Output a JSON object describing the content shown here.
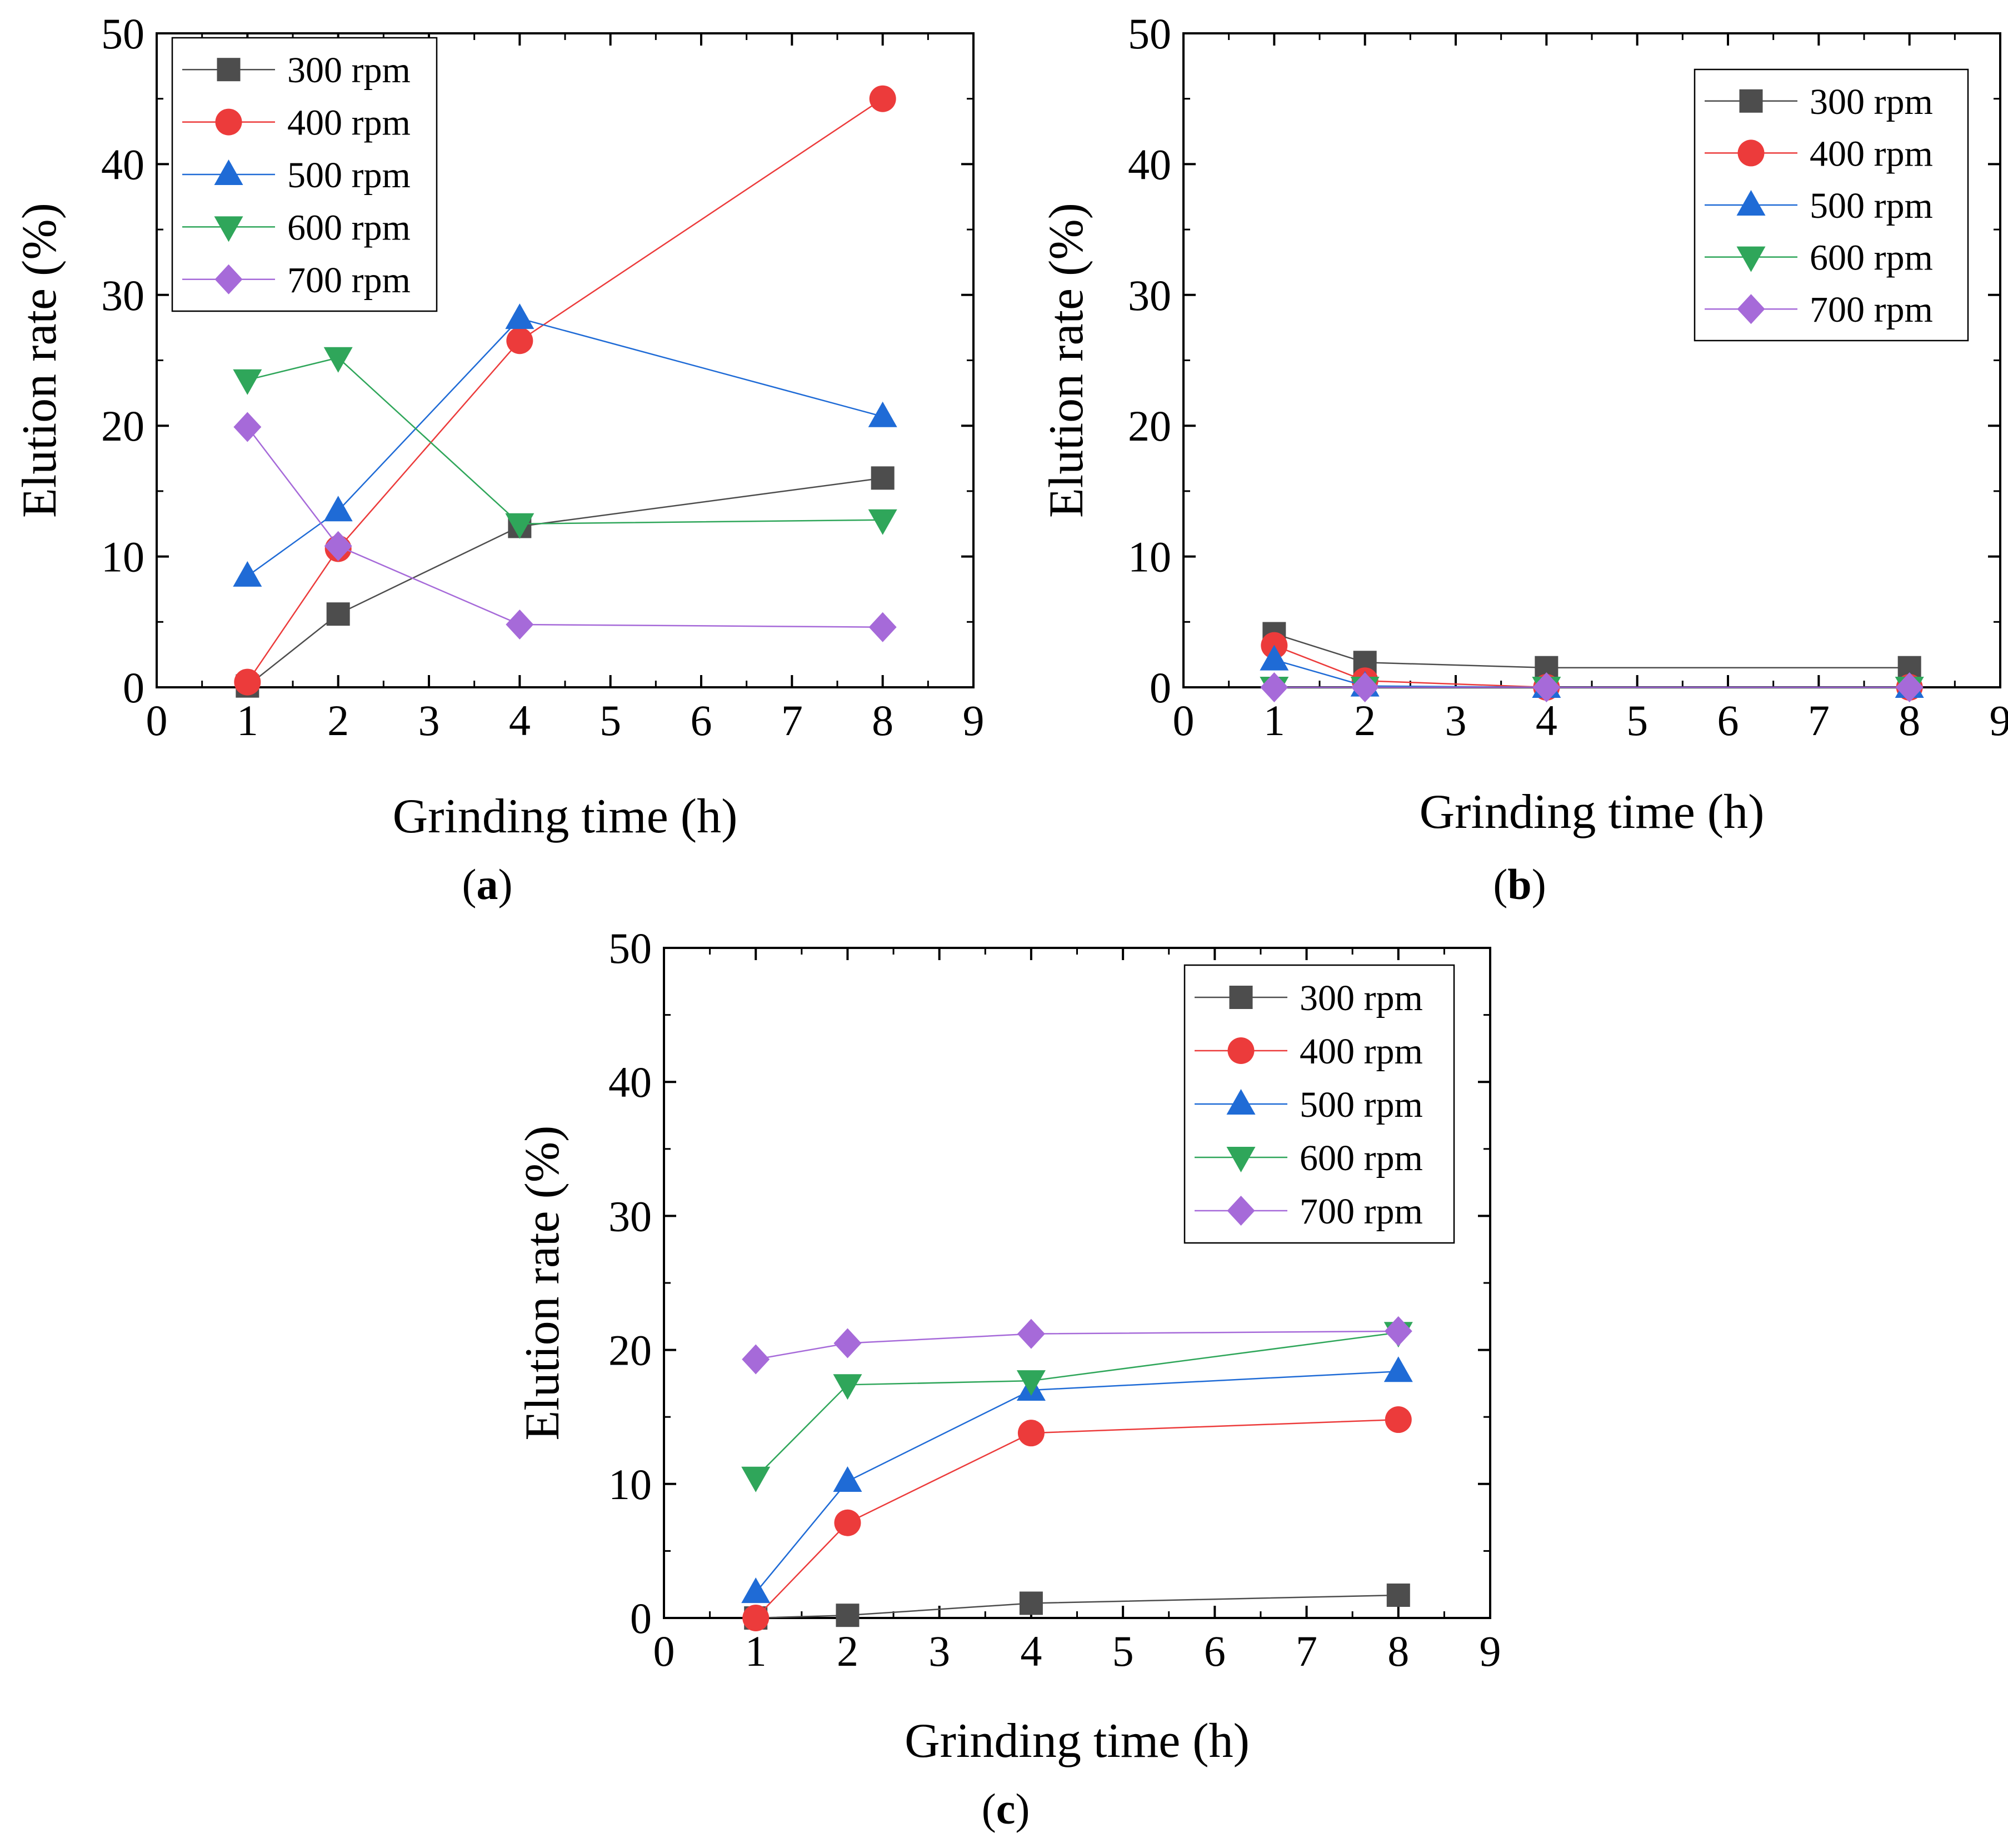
{
  "figure": {
    "captions": [
      {
        "open": "(",
        "letter": "a",
        "close": ")"
      },
      {
        "open": "(",
        "letter": "b",
        "close": ")"
      },
      {
        "open": "(",
        "letter": "c",
        "close": ")"
      }
    ]
  },
  "series_style": [
    {
      "name": "300 rpm",
      "color": "#4d4d4d",
      "marker": "square"
    },
    {
      "name": "400 rpm",
      "color": "#ec3b3b",
      "marker": "circle"
    },
    {
      "name": "500 rpm",
      "color": "#1f6bd6",
      "marker": "triangle-up"
    },
    {
      "name": "600 rpm",
      "color": "#2fa65a",
      "marker": "triangle-down"
    },
    {
      "name": "700 rpm",
      "color": "#a66ad9",
      "marker": "diamond"
    }
  ],
  "chart_data": [
    {
      "id": "a",
      "type": "line",
      "xlabel": "Grinding time (h)",
      "ylabel": "Elution rate (%)",
      "xlim": [
        0,
        9
      ],
      "ylim": [
        0,
        50
      ],
      "xticks": [
        "0",
        "1",
        "2",
        "3",
        "4",
        "5",
        "6",
        "7",
        "8",
        "9"
      ],
      "yticks": [
        "0",
        "10",
        "20",
        "30",
        "40",
        "50"
      ],
      "legend_position": "top-left",
      "x": [
        1,
        2,
        4,
        8
      ],
      "series": [
        {
          "name": "300 rpm",
          "values": [
            0.1,
            5.6,
            12.3,
            16.0
          ]
        },
        {
          "name": "400 rpm",
          "values": [
            0.4,
            10.6,
            26.5,
            45.0
          ]
        },
        {
          "name": "500 rpm",
          "values": [
            8.5,
            13.5,
            28.2,
            20.7
          ]
        },
        {
          "name": "600 rpm",
          "values": [
            23.5,
            25.2,
            12.5,
            12.8
          ]
        },
        {
          "name": "700 rpm",
          "values": [
            19.9,
            10.8,
            4.8,
            4.6
          ]
        }
      ]
    },
    {
      "id": "b",
      "type": "line",
      "xlabel": "Grinding time (h)",
      "ylabel": "Elution rate (%)",
      "xlim": [
        0,
        9
      ],
      "ylim": [
        0,
        50
      ],
      "xticks": [
        "0",
        "1",
        "2",
        "3",
        "4",
        "5",
        "6",
        "7",
        "8",
        "9"
      ],
      "yticks": [
        "0",
        "10",
        "20",
        "30",
        "40",
        "50"
      ],
      "legend_position": "top-right",
      "x": [
        1,
        2,
        4,
        8
      ],
      "series": [
        {
          "name": "300 rpm",
          "values": [
            4.1,
            1.9,
            1.5,
            1.5
          ]
        },
        {
          "name": "400 rpm",
          "values": [
            3.2,
            0.5,
            0.0,
            0.0
          ]
        },
        {
          "name": "500 rpm",
          "values": [
            2.1,
            0.1,
            0.0,
            0.0
          ]
        },
        {
          "name": "600 rpm",
          "values": [
            0.0,
            0.0,
            0.0,
            0.0
          ]
        },
        {
          "name": "700 rpm",
          "values": [
            0.0,
            0.0,
            0.0,
            0.0
          ]
        }
      ]
    },
    {
      "id": "c",
      "type": "line",
      "xlabel": "Grinding time (h)",
      "ylabel": "Elution rate (%)",
      "xlim": [
        0,
        9
      ],
      "ylim": [
        0,
        50
      ],
      "xticks": [
        "0",
        "1",
        "2",
        "3",
        "4",
        "5",
        "6",
        "7",
        "8",
        "9"
      ],
      "yticks": [
        "0",
        "10",
        "20",
        "30",
        "40",
        "50"
      ],
      "legend_position": "top-right",
      "x": [
        1,
        2,
        4,
        8
      ],
      "series": [
        {
          "name": "300 rpm",
          "values": [
            0.0,
            0.2,
            1.1,
            1.7
          ]
        },
        {
          "name": "400 rpm",
          "values": [
            0.0,
            7.1,
            13.8,
            14.8
          ]
        },
        {
          "name": "500 rpm",
          "values": [
            1.9,
            10.2,
            17.0,
            18.4
          ]
        },
        {
          "name": "600 rpm",
          "values": [
            10.5,
            17.4,
            17.7,
            21.3
          ]
        },
        {
          "name": "700 rpm",
          "values": [
            19.3,
            20.5,
            21.2,
            21.4
          ]
        }
      ]
    }
  ]
}
